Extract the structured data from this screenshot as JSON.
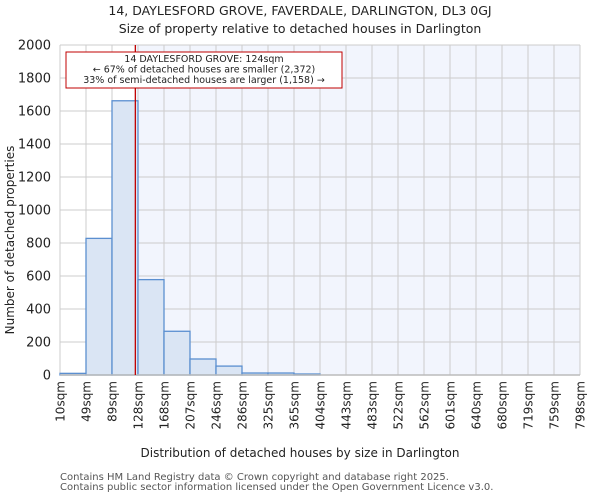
{
  "title": "14, DAYLESFORD GROVE, FAVERDALE, DARLINGTON, DL3 0GJ",
  "subtitle": "Size of property relative to detached houses in Darlington",
  "footer": [
    "Contains HM Land Registry data © Crown copyright and database right 2025.",
    "Contains public sector information licensed under the Open Government Licence v3.0."
  ],
  "colors": {
    "bar_fill": "#dae5f4",
    "bar_edge": "#5b8fd0",
    "marker_line": "#c00000",
    "highlight_bg": "#f2f5fd",
    "grid": "#cccccc"
  },
  "chart_data": {
    "type": "bar",
    "title": "14, DAYLESFORD GROVE, FAVERDALE, DARLINGTON, DL3 0GJ",
    "subtitle": "Size of property relative to detached houses in Darlington",
    "xlabel": "Distribution of detached houses by size in Darlington",
    "ylabel": "Number of detached properties",
    "categories": [
      "10sqm",
      "49sqm",
      "89sqm",
      "128sqm",
      "168sqm",
      "207sqm",
      "246sqm",
      "286sqm",
      "325sqm",
      "365sqm",
      "404sqm",
      "443sqm",
      "483sqm",
      "522sqm",
      "562sqm",
      "601sqm",
      "640sqm",
      "680sqm",
      "719sqm",
      "759sqm",
      "798sqm"
    ],
    "values": [
      10,
      828,
      1662,
      578,
      265,
      97,
      54,
      12,
      12,
      6,
      0,
      0,
      0,
      0,
      0,
      0,
      0,
      0,
      0,
      0
    ],
    "ylim": [
      0,
      2000
    ],
    "yticks": [
      0,
      200,
      400,
      600,
      800,
      1000,
      1200,
      1400,
      1600,
      1800,
      2000
    ],
    "grid": true,
    "marker": {
      "value_sqm": 124,
      "label_lines": [
        "14 DAYLESFORD GROVE: 124sqm",
        "← 67% of detached houses are smaller (2,372)",
        "33% of semi-detached houses are larger (1,158) →"
      ]
    }
  }
}
